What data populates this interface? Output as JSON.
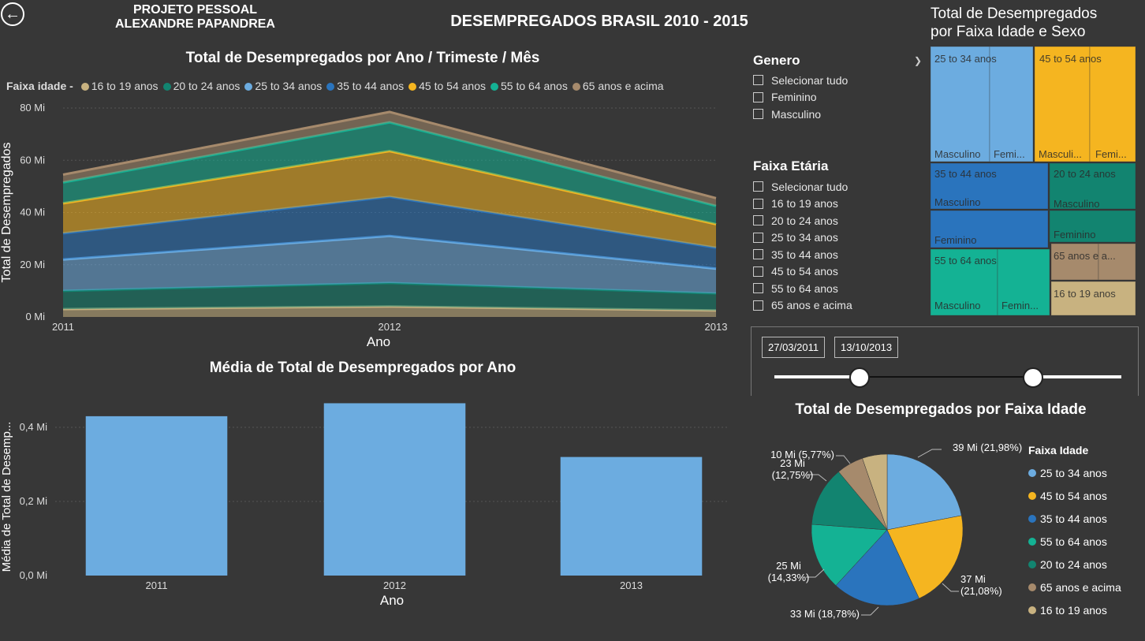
{
  "header": {
    "back_icon": "arrow-left-icon",
    "project_line1": "PROJETO PESSOAL",
    "project_line2": "ALEXANDRE PAPANDREA",
    "title": "DESEMPREGADOS BRASIL 2010 - 2015"
  },
  "colors": {
    "16_19": "#c8b280",
    "20_24": "#128470",
    "25_34": "#6cace0",
    "35_44": "#2a74bd",
    "45_54": "#f5b520",
    "55_64": "#14b294",
    "65p": "#a68a6c"
  },
  "area_legend_title": "Faixa idade -",
  "area_legend": [
    "16 to 19 anos",
    "20 to 24 anos",
    "25 to 34 anos",
    "35 to 44 anos",
    "45 to 54 anos",
    "55 to 64 anos",
    "65 anos e acima"
  ],
  "genero_slicer": {
    "title": "Genero",
    "items": [
      "Selecionar tudo",
      "Feminino",
      "Masculino"
    ]
  },
  "faixa_slicer": {
    "title": "Faixa Etária",
    "items": [
      "Selecionar tudo",
      "16 to 19 anos",
      "20 to 24 anos",
      "25 to 34 anos",
      "35 to 44 anos",
      "45 to 54 anos",
      "55 to 64 anos",
      "65 anos e acima"
    ]
  },
  "date_slicer": {
    "start": "27/03/2011",
    "end": "13/10/2013"
  },
  "treemap": {
    "title_line1": "Total de Desempregados",
    "title_line2": "por Faixa Idade e Sexo",
    "labels": {
      "g2534": "25 to 34 anos",
      "g4554": "45 to 54 anos",
      "g3544": "35 to 44 anos",
      "g2024": "20 to 24 anos",
      "g5564": "55 to 64 anos",
      "g65": "65 anos e a...",
      "g1619": "16 to 19 anos",
      "masc": "Masculino",
      "fem_short": "Femi...",
      "masc_short": "Masculi...",
      "fem": "Feminino",
      "fem_mid": "Femin..."
    }
  },
  "chart_data": [
    {
      "type": "area",
      "stacked": true,
      "title": "Total de Desempregados por Ano / Trimeste / Mês",
      "xlabel": "Ano",
      "ylabel": "Total de Desempregados",
      "x": [
        "2011",
        "2012",
        "2013"
      ],
      "y_ticks": [
        "0 Mi",
        "20 Mi",
        "40 Mi",
        "60 Mi",
        "80 Mi"
      ],
      "ylim": [
        0,
        80
      ],
      "grid": true,
      "legend_position": "top",
      "series": [
        {
          "name": "16 to 19 anos",
          "color_key": "16_19",
          "values": [
            3,
            4,
            2.5
          ]
        },
        {
          "name": "20 to 24 anos",
          "color_key": "20_24",
          "values": [
            7,
            9,
            6.5
          ]
        },
        {
          "name": "25 to 34 anos",
          "color_key": "25_34",
          "values": [
            12,
            18,
            9.5
          ]
        },
        {
          "name": "35 to 44 anos",
          "color_key": "35_44",
          "values": [
            10,
            15,
            8
          ]
        },
        {
          "name": "45 to 54 anos",
          "color_key": "45_54",
          "values": [
            11.5,
            17.5,
            9
          ]
        },
        {
          "name": "55 to 64 anos",
          "color_key": "55_64",
          "values": [
            8,
            11,
            7
          ]
        },
        {
          "name": "65 anos e acima",
          "color_key": "65p",
          "values": [
            3,
            4,
            3
          ]
        }
      ]
    },
    {
      "type": "bar",
      "title": "Média de Total de Desempregados por Ano",
      "xlabel": "Ano",
      "ylabel": "Média de Total de Desemp...",
      "categories": [
        "2011",
        "2012",
        "2013"
      ],
      "values": [
        0.43,
        0.465,
        0.32
      ],
      "y_ticks": [
        "0,0 Mi",
        "0,2 Mi",
        "0,4 Mi"
      ],
      "ylim": [
        0,
        0.5
      ],
      "grid": true,
      "color": "#6cace0"
    },
    {
      "type": "pie",
      "title": "Total de Desempregados por Faixa Idade",
      "legend_title": "Faixa Idade",
      "legend_position": "right",
      "slices": [
        {
          "label": "25 to 34 anos",
          "color_key": "25_34",
          "value": 39,
          "percent": 21.98,
          "text": "39 Mi (21,98%)"
        },
        {
          "label": "45 to 54 anos",
          "color_key": "45_54",
          "value": 37,
          "percent": 21.08,
          "text_line1": "37 Mi",
          "text_line2": "(21,08%)"
        },
        {
          "label": "35 to 44 anos",
          "color_key": "35_44",
          "value": 33,
          "percent": 18.78,
          "text": "33 Mi (18,78%)"
        },
        {
          "label": "55 to 64 anos",
          "color_key": "55_64",
          "value": 25,
          "percent": 14.33,
          "text_line1": "25 Mi",
          "text_line2": "(14,33%)"
        },
        {
          "label": "20 to 24 anos",
          "color_key": "20_24",
          "value": 23,
          "percent": 12.75,
          "text_line1": "23 Mi",
          "text_line2": "(12,75%)"
        },
        {
          "label": "65 anos e acima",
          "color_key": "65p",
          "value": 10,
          "percent": 5.77,
          "text": "10 Mi (5,77%)"
        },
        {
          "label": "16 to 19 anos",
          "color_key": "16_19",
          "value": 9,
          "percent": 5.31
        }
      ]
    }
  ]
}
